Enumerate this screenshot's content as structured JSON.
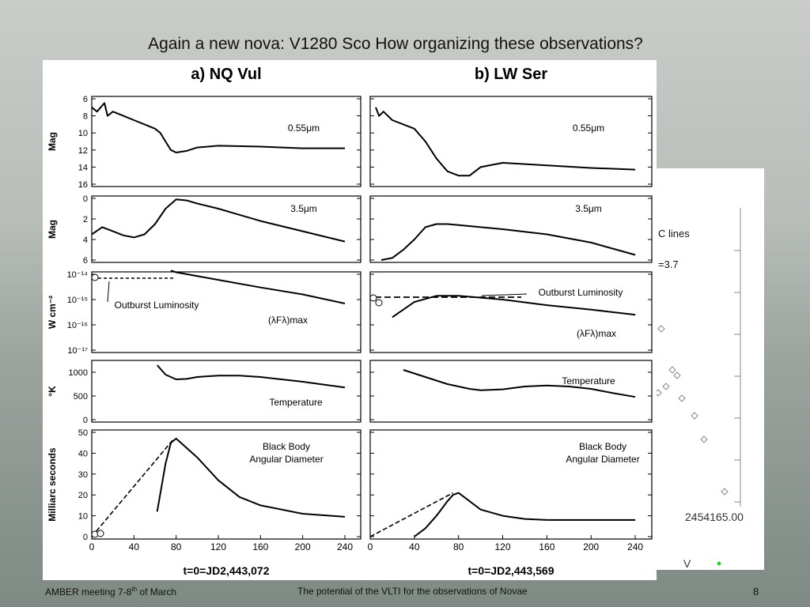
{
  "slide": {
    "title": "Again a new nova: V1280 Sco How organizing these observations?",
    "footer_left_prefix": "AMBER meeting 7-8",
    "footer_left_sup": "th",
    "footer_left_suffix": " of March",
    "footer_center": "The potential of the VLTI for the observations of Novae",
    "page_number": "8"
  },
  "colors": {
    "text": "#111111",
    "curve": "#000000",
    "marker": "#888888",
    "green_marker": "#22cc22"
  },
  "columns": [
    {
      "heading": "a) NQ Vul",
      "time_label": "t=0=JD2,443,072"
    },
    {
      "heading": "b) LW Ser",
      "time_label": "t=0=JD2,443,569"
    }
  ],
  "rows": [
    {
      "ylabel": "Mag",
      "ticks": [
        "6",
        "8",
        "10",
        "12",
        "14",
        "16"
      ],
      "annotation": "0.55μm"
    },
    {
      "ylabel": "Mag",
      "ticks": [
        "0",
        "2",
        "4",
        "6"
      ],
      "annotation": "3.5μm"
    },
    {
      "ylabel": "W cm⁻²",
      "ticks": [
        "10⁻¹⁴",
        "10⁻¹⁵",
        "10⁻¹⁶",
        "10⁻¹⁷"
      ],
      "annotation": "(λFλ)max",
      "annotation2": "Outburst Luminosity"
    },
    {
      "ylabel": "°K",
      "ticks": [
        "1000",
        "500",
        "0"
      ],
      "annotation": "Temperature"
    },
    {
      "ylabel": "Milliarc seconds",
      "ticks": [
        "50",
        "40",
        "30",
        "20",
        "10",
        "0"
      ],
      "annotation": "Black Body",
      "annotation2": "Angular Diameter"
    }
  ],
  "xticks": [
    "0",
    "40",
    "80",
    "120",
    "160",
    "200",
    "240"
  ],
  "chart_data": [
    {
      "type": "line",
      "title": "a) NQ Vul",
      "xlabel": "t=0=JD2,443,072",
      "x_ticks": [
        0,
        40,
        80,
        120,
        160,
        200,
        240
      ],
      "panels": [
        {
          "ylabel": "Mag",
          "note": "0.55μm",
          "ylim": [
            16,
            6
          ],
          "series": [
            {
              "x": [
                0,
                5,
                12,
                15,
                20,
                30,
                40,
                50,
                60,
                65,
                70,
                75,
                80,
                90,
                100,
                120,
                160,
                200,
                240
              ],
              "y": [
                7,
                7.5,
                6.5,
                8,
                7.5,
                8,
                8.5,
                9,
                9.5,
                10,
                11,
                12,
                12.3,
                12.1,
                11.7,
                11.5,
                11.6,
                11.8,
                11.8
              ]
            }
          ]
        },
        {
          "ylabel": "Mag",
          "note": "3.5μm",
          "ylim": [
            6,
            0
          ],
          "series": [
            {
              "x": [
                0,
                10,
                20,
                30,
                40,
                50,
                60,
                70,
                80,
                90,
                100,
                120,
                140,
                160,
                180,
                200,
                220,
                240
              ],
              "y": [
                3.5,
                2.8,
                3.2,
                3.6,
                3.8,
                3.5,
                2.5,
                1,
                0.1,
                0.2,
                0.5,
                1,
                1.6,
                2.2,
                2.7,
                3.2,
                3.7,
                4.2
              ]
            }
          ]
        },
        {
          "ylabel": "W cm-2",
          "note": "(λFλ)max",
          "yscale": "log",
          "ylim": [
            1e-17,
            1e-14
          ],
          "series": [
            {
              "x": [
                75,
                80,
                120,
                160,
                200,
                240
              ],
              "y": [
                1.4e-14,
                1.2e-14,
                6e-15,
                3e-15,
                1.6e-15,
                7e-16
              ]
            }
          ],
          "annotations": [
            "Outburst Luminosity"
          ]
        },
        {
          "ylabel": "°K",
          "note": "Temperature",
          "ylim": [
            0,
            1200
          ],
          "series": [
            {
              "x": [
                62,
                70,
                80,
                90,
                100,
                120,
                140,
                160,
                180,
                200,
                220,
                240
              ],
              "y": [
                1150,
                950,
                850,
                860,
                900,
                930,
                930,
                900,
                850,
                800,
                740,
                680
              ]
            }
          ]
        },
        {
          "ylabel": "Milliarc seconds",
          "note": "Black Body Angular Diameter",
          "ylim": [
            0,
            50
          ],
          "series": [
            {
              "x": [
                62,
                70,
                75,
                80,
                100,
                120,
                140,
                160,
                200,
                240
              ],
              "y": [
                12,
                35,
                45,
                47,
                38,
                27,
                19,
                15,
                11,
                9.5
              ]
            },
            {
              "x": [
                0,
                78
              ],
              "y": [
                0,
                47
              ]
            }
          ]
        }
      ]
    },
    {
      "type": "line",
      "title": "b) LW Ser",
      "xlabel": "t=0=JD2,443,569",
      "x_ticks": [
        0,
        40,
        80,
        120,
        160,
        200,
        240
      ],
      "panels": [
        {
          "ylabel": "Mag",
          "note": "0.55μm",
          "ylim": [
            16,
            6
          ],
          "series": [
            {
              "x": [
                5,
                8,
                12,
                20,
                30,
                40,
                50,
                60,
                70,
                80,
                90,
                100,
                120,
                160,
                200,
                240
              ],
              "y": [
                7,
                8,
                7.5,
                8.5,
                9,
                9.5,
                11,
                13,
                14.5,
                15,
                15,
                14,
                13.5,
                13.8,
                14.1,
                14.3
              ]
            }
          ]
        },
        {
          "ylabel": "Mag",
          "note": "3.5μm",
          "ylim": [
            6,
            0
          ],
          "series": [
            {
              "x": [
                10,
                20,
                30,
                40,
                50,
                60,
                70,
                80,
                100,
                120,
                160,
                200,
                240
              ],
              "y": [
                6,
                5.8,
                5,
                4,
                2.8,
                2.5,
                2.5,
                2.6,
                2.8,
                3,
                3.5,
                4.3,
                5.5
              ]
            }
          ]
        },
        {
          "ylabel": "W cm-2",
          "note": "(λFλ)max",
          "yscale": "log",
          "ylim": [
            1e-17,
            1e-14
          ],
          "series": [
            {
              "x": [
                20,
                40,
                60,
                80,
                120,
                160,
                200,
                240
              ],
              "y": [
                2e-16,
                8e-16,
                1.4e-15,
                1.4e-15,
                1e-15,
                6e-16,
                4e-16,
                2.5e-16
              ]
            }
          ],
          "annotations": [
            "Outburst Luminosity"
          ]
        },
        {
          "ylabel": "°K",
          "note": "Temperature",
          "ylim": [
            0,
            1200
          ],
          "series": [
            {
              "x": [
                30,
                50,
                70,
                90,
                100,
                120,
                140,
                160,
                180,
                200,
                220,
                240
              ],
              "y": [
                1050,
                900,
                750,
                650,
                620,
                640,
                700,
                720,
                700,
                650,
                560,
                480
              ]
            }
          ]
        },
        {
          "ylabel": "Milliarc seconds",
          "note": "Black Body Angular Diameter",
          "ylim": [
            0,
            50
          ],
          "series": [
            {
              "x": [
                40,
                50,
                60,
                70,
                75,
                80,
                90,
                100,
                120,
                140,
                160,
                200,
                240
              ],
              "y": [
                0,
                4,
                10,
                17,
                20,
                21,
                17,
                13,
                10,
                8.5,
                8,
                8,
                8
              ]
            },
            {
              "x": [
                0,
                75
              ],
              "y": [
                0,
                21
              ]
            }
          ]
        }
      ]
    }
  ],
  "overlay": {
    "text1": "C lines",
    "text2": "=3.7",
    "x_label": "2454165.00",
    "legend_v": "V"
  }
}
